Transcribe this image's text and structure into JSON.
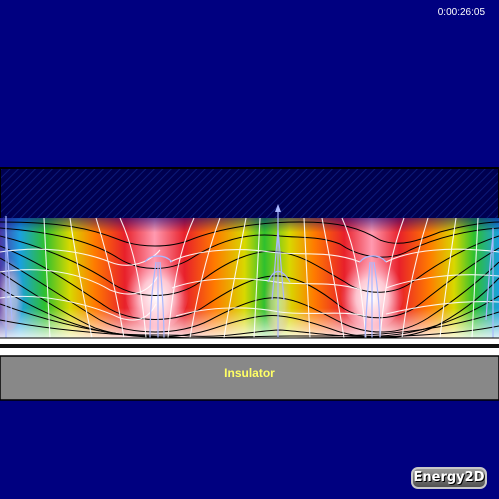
{
  "header": {
    "elapsed_time": "0:00:26:05"
  },
  "materials": {
    "insulator_label": "Insulator"
  },
  "branding": {
    "app_name": "Energy2D"
  },
  "colors": {
    "background": "#000080",
    "top_block": "#000050",
    "insulator": "#888888",
    "heater_strip": "#ffffff",
    "streamlines": "#aab8ff",
    "heat_flux_lines": "#ffffff",
    "isotherms": "#000000"
  }
}
